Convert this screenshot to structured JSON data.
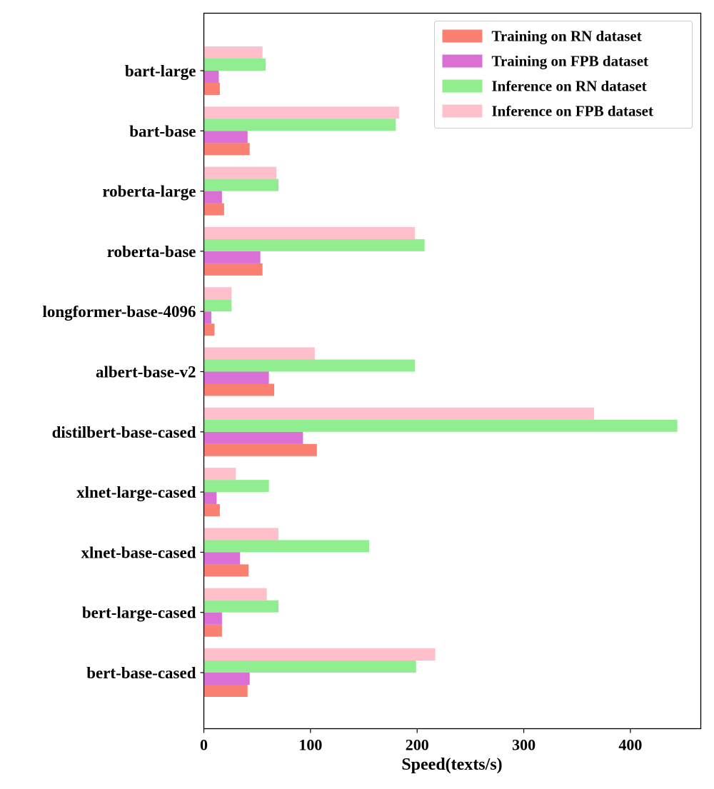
{
  "chart_data": {
    "type": "bar",
    "orientation": "horizontal",
    "categories": [
      "bart-large",
      "bart-base",
      "roberta-large",
      "roberta-base",
      "longformer-base-4096",
      "albert-base-v2",
      "distilbert-base-cased",
      "xlnet-large-cased",
      "xlnet-base-cased",
      "bert-large-cased",
      "bert-base-cased"
    ],
    "series": [
      {
        "name": "Training on RN dataset",
        "color": "#fa8072",
        "values": [
          15,
          43,
          19,
          55,
          10,
          66,
          106,
          15,
          42,
          17,
          41
        ]
      },
      {
        "name": "Training on FPB dataset",
        "color": "#da70d6",
        "values": [
          14,
          41,
          17,
          53,
          7,
          61,
          93,
          12,
          34,
          17,
          43
        ]
      },
      {
        "name": "Inference on RN dataset",
        "color": "#90ee90",
        "values": [
          58,
          180,
          70,
          207,
          26,
          198,
          444,
          61,
          155,
          70,
          199
        ]
      },
      {
        "name": "Inference on FPB dataset",
        "color": "#ffc0cb",
        "values": [
          55,
          183,
          68,
          198,
          26,
          104,
          366,
          30,
          70,
          59,
          217
        ]
      }
    ],
    "xlabel": "Speed(texts/s)",
    "ylabel": "",
    "xlim": [
      0,
      466
    ],
    "xticks": [
      0,
      100,
      200,
      300,
      400
    ],
    "grid": false,
    "legend_position": "top-right"
  }
}
